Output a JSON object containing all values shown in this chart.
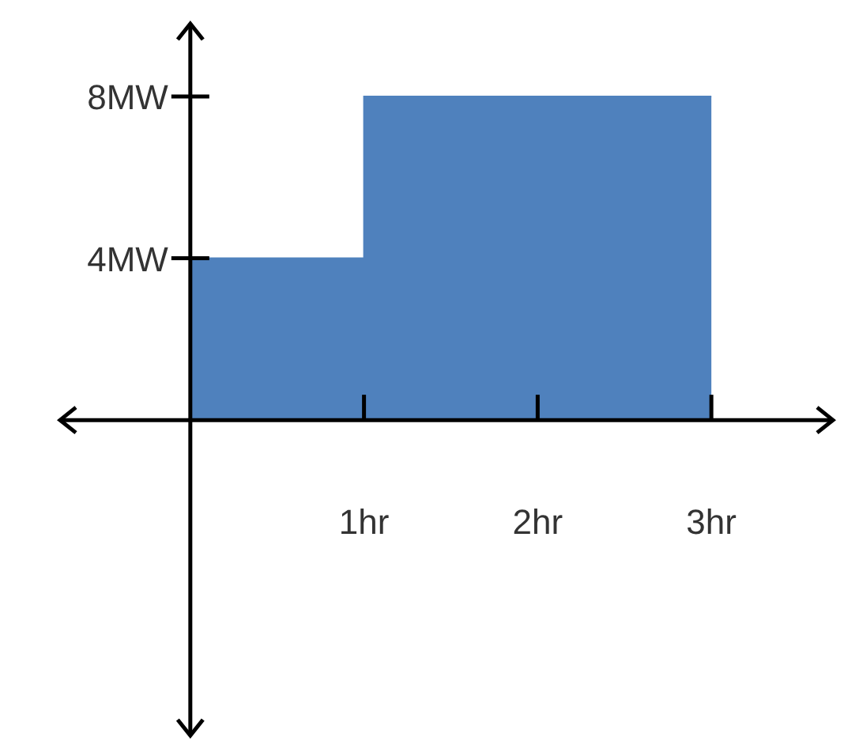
{
  "chart_data": {
    "type": "area",
    "x": [
      0,
      1,
      1,
      3
    ],
    "values": [
      4,
      4,
      8,
      8
    ],
    "color": "#4f81bd",
    "xlim": [
      -0.75,
      3.7
    ],
    "ylim": [
      -7.8,
      9.8
    ],
    "xticks": [
      {
        "value": 1,
        "label": "1hr"
      },
      {
        "value": 2,
        "label": "2hr"
      },
      {
        "value": 3,
        "label": "3hr"
      }
    ],
    "yticks": [
      {
        "value": 4,
        "label": "4MW"
      },
      {
        "value": 8,
        "label": "8MW"
      }
    ]
  }
}
